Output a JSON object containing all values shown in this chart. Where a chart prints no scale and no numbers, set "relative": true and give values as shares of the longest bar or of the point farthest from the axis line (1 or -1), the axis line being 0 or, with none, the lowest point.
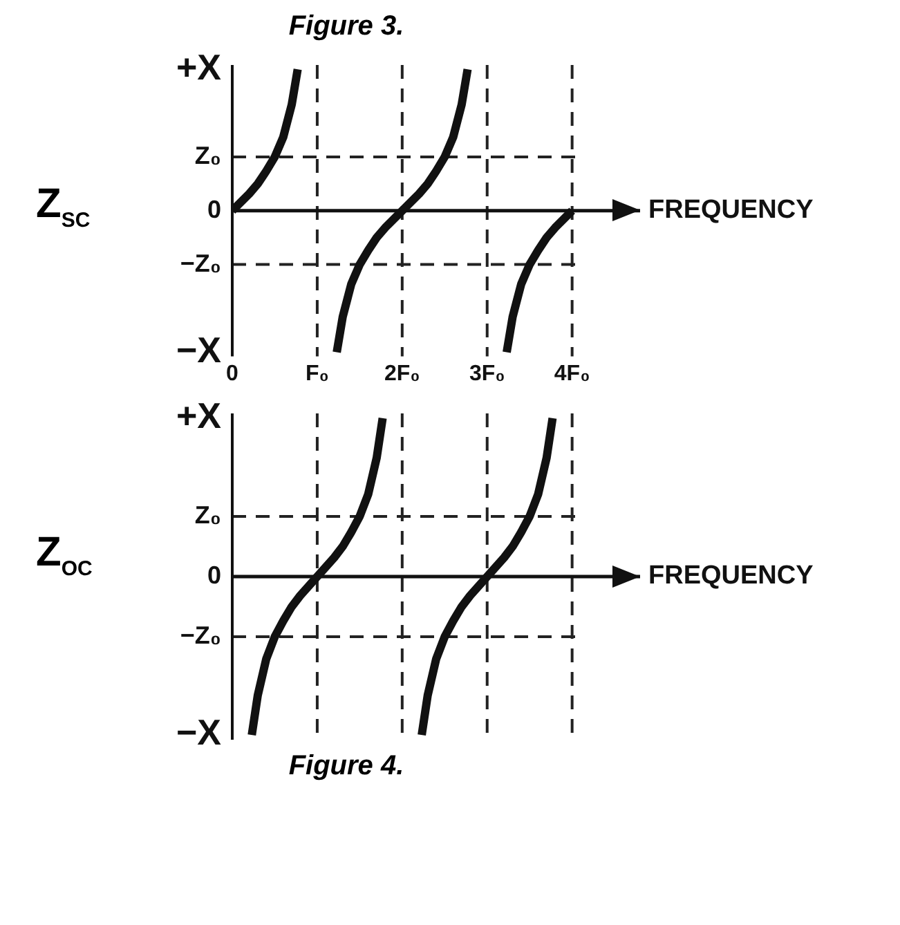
{
  "chart_data": [
    {
      "type": "line",
      "relative": true,
      "title": "Figure 3.",
      "ylabel": "Z$_{SC}$",
      "xlabel": "FREQUENCY",
      "xlim": [
        0,
        4.8
      ],
      "xticks": [
        0,
        {
          "value": 1,
          "label": "F₀"
        },
        {
          "value": 2,
          "label": "2F₀"
        },
        {
          "value": 3,
          "label": "3F₀"
        },
        {
          "value": 4,
          "label": "4F₀"
        }
      ],
      "annotations": [
        "+X",
        "0",
        "−X"
      ],
      "ref_lines": [
        {
          "axis": "x",
          "value": 1,
          "line_style": "dashed"
        },
        {
          "axis": "x",
          "value": 2,
          "line_style": "dashed"
        },
        {
          "axis": "x",
          "value": 3,
          "line_style": "dashed"
        },
        {
          "axis": "x",
          "value": 4,
          "line_style": "dashed"
        },
        {
          "axis": "y",
          "value": 0.38,
          "label": "Z₀",
          "line_style": "dashed"
        },
        {
          "axis": "y",
          "value": -0.38,
          "label": "−Z₀",
          "line_style": "dashed"
        }
      ],
      "series": [
        {
          "color": "#111111",
          "x": [
            0,
            0.1,
            0.2,
            0.3,
            0.4,
            0.5,
            0.6,
            0.7,
            0.77,
            1,
            1.23,
            1.3,
            1.4,
            1.5,
            1.6,
            1.7,
            1.8,
            1.9,
            2,
            2.1,
            2.2,
            2.3,
            2.4,
            2.5,
            2.6,
            2.7,
            2.77,
            3,
            3.23,
            3.3,
            3.4,
            3.5,
            3.6,
            3.7,
            3.8,
            3.9,
            4
          ],
          "values": [
            0,
            0.06,
            0.12,
            0.19,
            0.28,
            0.38,
            0.52,
            0.75,
            1,
            null,
            -1,
            -0.75,
            -0.52,
            -0.38,
            -0.28,
            -0.19,
            -0.12,
            -0.06,
            0,
            0.06,
            0.12,
            0.19,
            0.28,
            0.38,
            0.52,
            0.75,
            1,
            null,
            -1,
            -0.75,
            -0.52,
            -0.38,
            -0.28,
            -0.19,
            -0.12,
            -0.06,
            0
          ]
        }
      ]
    },
    {
      "type": "line",
      "relative": true,
      "ylabel": "Z$_{OC}$",
      "xlabel": "FREQUENCY",
      "xlim": [
        0,
        4.8
      ],
      "annotations": [
        "+X",
        "0",
        "−X",
        "Figure 4."
      ],
      "ref_lines": [
        {
          "axis": "x",
          "value": 1,
          "line_style": "dashed"
        },
        {
          "axis": "x",
          "value": 2,
          "line_style": "dashed"
        },
        {
          "axis": "x",
          "value": 3,
          "line_style": "dashed"
        },
        {
          "axis": "x",
          "value": 4,
          "line_style": "dashed"
        },
        {
          "axis": "y",
          "value": 0.38,
          "label": "Z₀",
          "line_style": "dashed"
        },
        {
          "axis": "y",
          "value": -0.38,
          "label": "−Z₀",
          "line_style": "dashed"
        }
      ],
      "series": [
        {
          "color": "#111111",
          "x": [
            0.23,
            0.3,
            0.4,
            0.5,
            0.6,
            0.7,
            0.8,
            0.9,
            1,
            1.1,
            1.2,
            1.3,
            1.4,
            1.5,
            1.6,
            1.7,
            1.77,
            2,
            2.23,
            2.3,
            2.4,
            2.5,
            2.6,
            2.7,
            2.8,
            2.9,
            3,
            3.1,
            3.2,
            3.3,
            3.4,
            3.5,
            3.6,
            3.7,
            3.77
          ],
          "values": [
            -1,
            -0.75,
            -0.52,
            -0.38,
            -0.28,
            -0.19,
            -0.12,
            -0.06,
            0,
            0.06,
            0.12,
            0.19,
            0.28,
            0.38,
            0.52,
            0.75,
            1,
            null,
            -1,
            -0.75,
            -0.52,
            -0.38,
            -0.28,
            -0.19,
            -0.12,
            -0.06,
            0,
            0.06,
            0.12,
            0.19,
            0.28,
            0.38,
            0.52,
            0.75,
            1
          ]
        }
      ]
    }
  ]
}
